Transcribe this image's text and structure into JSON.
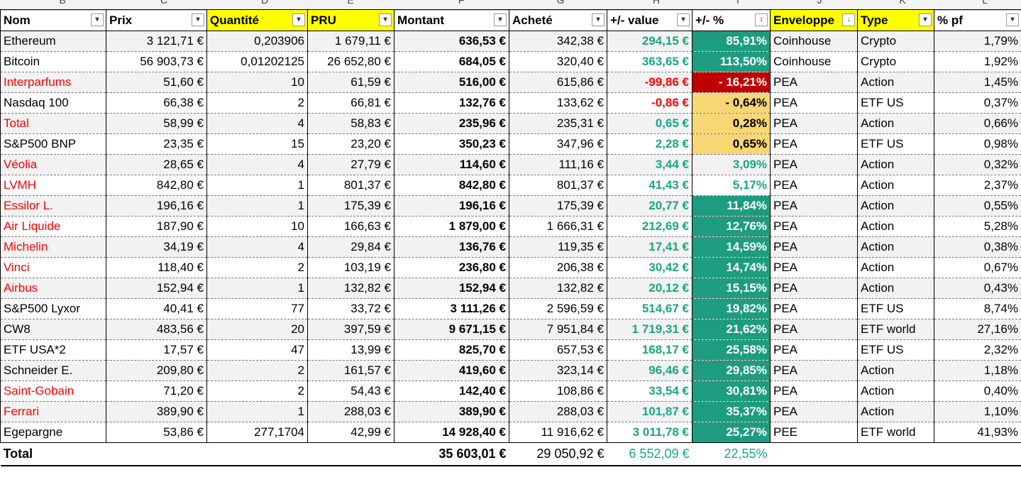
{
  "column_letters": [
    "B",
    "C",
    "D",
    "E",
    "F",
    "G",
    "H",
    "I",
    "J",
    "K",
    "L"
  ],
  "headers": [
    {
      "label": "Nom",
      "filter_icon": "filter-active-icon",
      "highlight": false
    },
    {
      "label": "Prix",
      "filter_icon": "dropdown-icon",
      "highlight": false
    },
    {
      "label": "Quantité",
      "filter_icon": "dropdown-icon",
      "highlight": true
    },
    {
      "label": "PRU",
      "filter_icon": "dropdown-icon",
      "highlight": true
    },
    {
      "label": "Montant",
      "filter_icon": "dropdown-icon",
      "highlight": false
    },
    {
      "label": "Acheté",
      "filter_icon": "dropdown-icon",
      "highlight": false
    },
    {
      "label": "+/- value",
      "filter_icon": "dropdown-icon",
      "highlight": false
    },
    {
      "label": "+/- %",
      "filter_icon": "sort-icon",
      "highlight": false
    },
    {
      "label": "Enveloppe",
      "filter_icon": "sort-dropdown-icon",
      "highlight": true
    },
    {
      "label": "Type",
      "filter_icon": "dropdown-icon",
      "highlight": true
    },
    {
      "label": "% pf",
      "filter_icon": "dropdown-icon",
      "highlight": false
    }
  ],
  "rows": [
    {
      "nom": "Ethereum",
      "nom_red": false,
      "prix": "3 121,71 €",
      "quantite": "0,203906",
      "pru": "1 679,11 €",
      "montant": "636,53 €",
      "achete": "342,38 €",
      "pv": "294,15 €",
      "pv_sign": "pos",
      "pct": "85,91%",
      "pct_style": "teal",
      "enveloppe": "Coinhouse",
      "type": "Crypto",
      "pf": "1,79%"
    },
    {
      "nom": "Bitcoin",
      "nom_red": false,
      "prix": "56 903,73 €",
      "quantite": "0,01202125",
      "pru": "26 652,80 €",
      "montant": "684,05 €",
      "achete": "320,40 €",
      "pv": "363,65 €",
      "pv_sign": "pos",
      "pct": "113,50%",
      "pct_style": "teal",
      "enveloppe": "Coinhouse",
      "type": "Crypto",
      "pf": "1,92%"
    },
    {
      "nom": "Interparfums",
      "nom_red": true,
      "prix": "51,60 €",
      "quantite": "10",
      "pru": "61,59 €",
      "montant": "516,00 €",
      "achete": "615,86 €",
      "pv": "-99,86 €",
      "pv_sign": "neg",
      "pct": "- 16,21%",
      "pct_style": "red",
      "enveloppe": "PEA",
      "type": "Action",
      "pf": "1,45%"
    },
    {
      "nom": "Nasdaq 100",
      "nom_red": false,
      "prix": "66,38 €",
      "quantite": "2",
      "pru": "66,81 €",
      "montant": "132,76 €",
      "achete": "133,62 €",
      "pv": "-0,86 €",
      "pv_sign": "neg",
      "pct": "- 0,64%",
      "pct_style": "yel",
      "enveloppe": "PEA",
      "type": "ETF US",
      "pf": "0,37%"
    },
    {
      "nom": "Total",
      "nom_red": true,
      "prix": "58,99 €",
      "quantite": "4",
      "pru": "58,83 €",
      "montant": "235,96 €",
      "achete": "235,31 €",
      "pv": "0,65 €",
      "pv_sign": "pos",
      "pct": "0,28%",
      "pct_style": "yel",
      "enveloppe": "PEA",
      "type": "Action",
      "pf": "0,66%"
    },
    {
      "nom": "S&P500 BNP",
      "nom_red": false,
      "prix": "23,35 €",
      "quantite": "15",
      "pru": "23,20 €",
      "montant": "350,23 €",
      "achete": "347,96 €",
      "pv": "2,28 €",
      "pv_sign": "pos",
      "pct": "0,65%",
      "pct_style": "yel",
      "enveloppe": "PEA",
      "type": "ETF US",
      "pf": "0,98%"
    },
    {
      "nom": "Véolia",
      "nom_red": true,
      "prix": "28,65 €",
      "quantite": "4",
      "pru": "27,79 €",
      "montant": "114,60 €",
      "achete": "111,16 €",
      "pv": "3,44 €",
      "pv_sign": "pos",
      "pct": "3,09%",
      "pct_style": "plain",
      "enveloppe": "PEA",
      "type": "Action",
      "pf": "0,32%"
    },
    {
      "nom": "LVMH",
      "nom_red": true,
      "prix": "842,80 €",
      "quantite": "1",
      "pru": "801,37 €",
      "montant": "842,80 €",
      "achete": "801,37 €",
      "pv": "41,43 €",
      "pv_sign": "pos",
      "pct": "5,17%",
      "pct_style": "plain",
      "enveloppe": "PEA",
      "type": "Action",
      "pf": "2,37%"
    },
    {
      "nom": "Essilor L.",
      "nom_red": true,
      "prix": "196,16 €",
      "quantite": "1",
      "pru": "175,39 €",
      "montant": "196,16 €",
      "achete": "175,39 €",
      "pv": "20,77 €",
      "pv_sign": "pos",
      "pct": "11,84%",
      "pct_style": "teal",
      "enveloppe": "PEA",
      "type": "Action",
      "pf": "0,55%"
    },
    {
      "nom": "Air Liquide",
      "nom_red": true,
      "prix": "187,90 €",
      "quantite": "10",
      "pru": "166,63 €",
      "montant": "1 879,00 €",
      "achete": "1 666,31 €",
      "pv": "212,69 €",
      "pv_sign": "pos",
      "pct": "12,76%",
      "pct_style": "teal",
      "enveloppe": "PEA",
      "type": "Action",
      "pf": "5,28%"
    },
    {
      "nom": "Michelin",
      "nom_red": true,
      "prix": "34,19 €",
      "quantite": "4",
      "pru": "29,84 €",
      "montant": "136,76 €",
      "achete": "119,35 €",
      "pv": "17,41 €",
      "pv_sign": "pos",
      "pct": "14,59%",
      "pct_style": "teal",
      "enveloppe": "PEA",
      "type": "Action",
      "pf": "0,38%"
    },
    {
      "nom": "Vinci",
      "nom_red": true,
      "prix": "118,40 €",
      "quantite": "2",
      "pru": "103,19 €",
      "montant": "236,80 €",
      "achete": "206,38 €",
      "pv": "30,42 €",
      "pv_sign": "pos",
      "pct": "14,74%",
      "pct_style": "teal",
      "enveloppe": "PEA",
      "type": "Action",
      "pf": "0,67%"
    },
    {
      "nom": "Airbus",
      "nom_red": true,
      "prix": "152,94 €",
      "quantite": "1",
      "pru": "132,82 €",
      "montant": "152,94 €",
      "achete": "132,82 €",
      "pv": "20,12 €",
      "pv_sign": "pos",
      "pct": "15,15%",
      "pct_style": "teal",
      "enveloppe": "PEA",
      "type": "Action",
      "pf": "0,43%"
    },
    {
      "nom": "S&P500 Lyxor",
      "nom_red": false,
      "prix": "40,41 €",
      "quantite": "77",
      "pru": "33,72 €",
      "montant": "3 111,26 €",
      "achete": "2 596,59 €",
      "pv": "514,67 €",
      "pv_sign": "pos",
      "pct": "19,82%",
      "pct_style": "teal",
      "enveloppe": "PEA",
      "type": "ETF US",
      "pf": "8,74%"
    },
    {
      "nom": "CW8",
      "nom_red": false,
      "prix": "483,56 €",
      "quantite": "20",
      "pru": "397,59 €",
      "montant": "9 671,15 €",
      "achete": "7 951,84 €",
      "pv": "1 719,31 €",
      "pv_sign": "pos",
      "pct": "21,62%",
      "pct_style": "teal",
      "enveloppe": "PEA",
      "type": "ETF world",
      "pf": "27,16%"
    },
    {
      "nom": "ETF USA*2",
      "nom_red": false,
      "prix": "17,57 €",
      "quantite": "47",
      "pru": "13,99 €",
      "montant": "825,70 €",
      "achete": "657,53 €",
      "pv": "168,17 €",
      "pv_sign": "pos",
      "pct": "25,58%",
      "pct_style": "teal",
      "enveloppe": "PEA",
      "type": "ETF US",
      "pf": "2,32%"
    },
    {
      "nom": "Schneider E.",
      "nom_red": false,
      "prix": "209,80 €",
      "quantite": "2",
      "pru": "161,57 €",
      "montant": "419,60 €",
      "achete": "323,14 €",
      "pv": "96,46 €",
      "pv_sign": "pos",
      "pct": "29,85%",
      "pct_style": "teal",
      "enveloppe": "PEA",
      "type": "Action",
      "pf": "1,18%"
    },
    {
      "nom": "Saint-Gobain",
      "nom_red": true,
      "prix": "71,20 €",
      "quantite": "2",
      "pru": "54,43 €",
      "montant": "142,40 €",
      "achete": "108,86 €",
      "pv": "33,54 €",
      "pv_sign": "pos",
      "pct": "30,81%",
      "pct_style": "teal",
      "enveloppe": "PEA",
      "type": "Action",
      "pf": "0,40%"
    },
    {
      "nom": "Ferrari",
      "nom_red": true,
      "prix": "389,90 €",
      "quantite": "1",
      "pru": "288,03 €",
      "montant": "389,90 €",
      "achete": "288,03 €",
      "pv": "101,87 €",
      "pv_sign": "pos",
      "pct": "35,37%",
      "pct_style": "teal",
      "enveloppe": "PEA",
      "type": "Action",
      "pf": "1,10%"
    },
    {
      "nom": "Egepargne",
      "nom_red": false,
      "prix": "53,86 €",
      "quantite": "277,1704",
      "pru": "42,99 €",
      "montant": "14 928,40 €",
      "achete": "11 916,62 €",
      "pv": "3 011,78 €",
      "pv_sign": "pos",
      "pct": "25,27%",
      "pct_style": "teal",
      "enveloppe": "PEE",
      "type": "ETF world",
      "pf": "41,93%"
    }
  ],
  "total": {
    "label": "Total",
    "montant": "35 603,01 €",
    "achete": "29 050,92 €",
    "pv": "6 552,09 €",
    "pct": "22,55%"
  },
  "colors": {
    "header_highlight": "#ffff00",
    "teal_fill": "#1d9c7f",
    "red_fill": "#c00000",
    "yellow_fill": "#f7d774",
    "positive_text": "#1aa683",
    "negative_text": "#ff0000"
  }
}
